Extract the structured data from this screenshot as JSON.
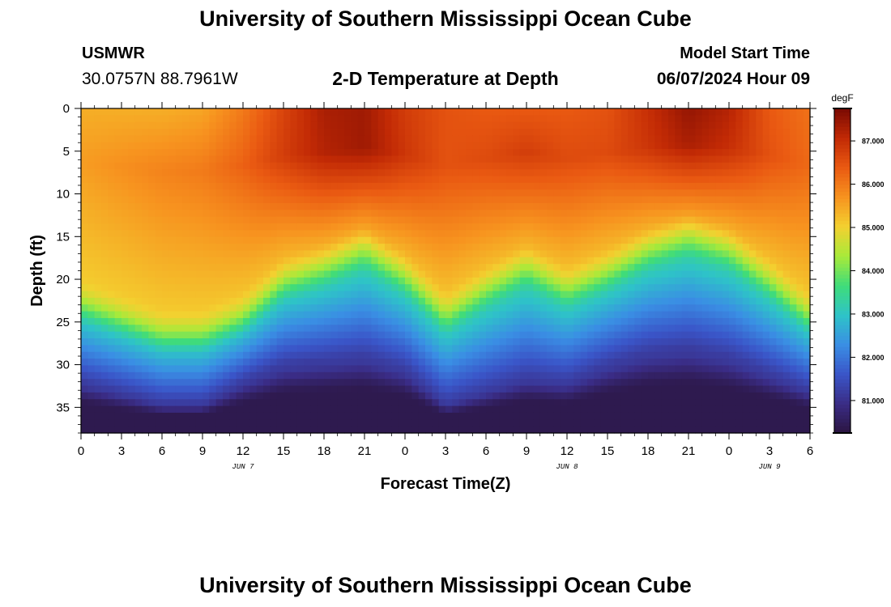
{
  "header": {
    "title": "University of Southern Mississippi Ocean Cube",
    "station": "USMWR",
    "coords": "30.0757N  88.7961W",
    "subtitle": "2-D Temperature at Depth",
    "start_label": "Model Start Time",
    "start_value": "06/07/2024 Hour 09"
  },
  "footer": {
    "title": "University of Southern Mississippi Ocean Cube"
  },
  "chart_data": {
    "type": "heatmap",
    "title": "2-D Temperature at Depth",
    "xlabel": "Forecast Time(Z)",
    "ylabel": "Depth (ft)",
    "x_ticks": [
      "0",
      "3",
      "6",
      "9",
      "12",
      "15",
      "18",
      "21",
      "0",
      "3",
      "6",
      "9",
      "12",
      "15",
      "18",
      "21",
      "0",
      "3",
      "6"
    ],
    "x_range_hours": [
      0,
      54
    ],
    "y_ticks": [
      "0",
      "5",
      "10",
      "15",
      "20",
      "25",
      "30",
      "35"
    ],
    "y_range": [
      0,
      38
    ],
    "date_labels": [
      {
        "label": "JUN 7",
        "hour": 12
      },
      {
        "label": "JUN 8",
        "hour": 36
      },
      {
        "label": "JUN 9",
        "hour": 51
      }
    ],
    "colorbar": {
      "unit": "degF",
      "range": [
        80.25,
        87.75
      ],
      "ticks": [
        "81.000",
        "82.000",
        "83.000",
        "84.000",
        "85.000",
        "86.000",
        "87.000"
      ],
      "tick_values": [
        81,
        82,
        83,
        84,
        85,
        86,
        87
      ],
      "colors": [
        "#2b1540",
        "#3a2c85",
        "#3a55c8",
        "#3a8ee4",
        "#2ec3c8",
        "#3fdc7a",
        "#a8ea3a",
        "#f3d130",
        "#f7931f",
        "#ea5a12",
        "#c22a05",
        "#7a0a03"
      ]
    },
    "series": [
      {
        "name": "interface_depth_ft",
        "x": [
          0,
          6,
          9,
          12,
          15,
          18,
          21,
          24,
          27,
          30,
          33,
          36,
          39,
          42,
          45,
          48,
          51,
          54
        ],
        "values": [
          22.5,
          26,
          26,
          24,
          20,
          18.5,
          16.5,
          19.5,
          24,
          21,
          18.5,
          21,
          19,
          16.5,
          15,
          16.5,
          20,
          24
        ]
      },
      {
        "name": "deep_cold_depth_ft",
        "x": [
          0,
          6,
          9,
          12,
          15,
          18,
          21,
          24,
          27,
          30,
          33,
          36,
          39,
          42,
          45,
          48,
          51,
          54
        ],
        "values": [
          32,
          34.5,
          34.5,
          32,
          30,
          29.5,
          29,
          30.5,
          34.5,
          33,
          31.5,
          32,
          30,
          28.5,
          28,
          29,
          31,
          33
        ]
      },
      {
        "name": "warm_core_peak_degF",
        "x": [
          0,
          6,
          9,
          12,
          15,
          18,
          21,
          24,
          27,
          30,
          33,
          36,
          39,
          42,
          45,
          48,
          51,
          54
        ],
        "values": [
          85.6,
          85.9,
          86.0,
          86.3,
          86.8,
          87.2,
          87.4,
          86.9,
          86.5,
          86.6,
          86.8,
          86.6,
          86.6,
          86.9,
          87.3,
          87.0,
          86.5,
          86.2
        ]
      },
      {
        "name": "surface_temp_degF",
        "x": [
          0,
          6,
          9,
          12,
          15,
          18,
          21,
          24,
          27,
          30,
          33,
          36,
          39,
          42,
          45,
          48,
          51,
          54
        ],
        "values": [
          85.4,
          85.4,
          85.5,
          86.0,
          86.7,
          87.3,
          87.4,
          86.8,
          86.5,
          86.4,
          86.4,
          86.4,
          86.5,
          87.0,
          87.5,
          87.2,
          86.4,
          86.1
        ]
      }
    ]
  }
}
